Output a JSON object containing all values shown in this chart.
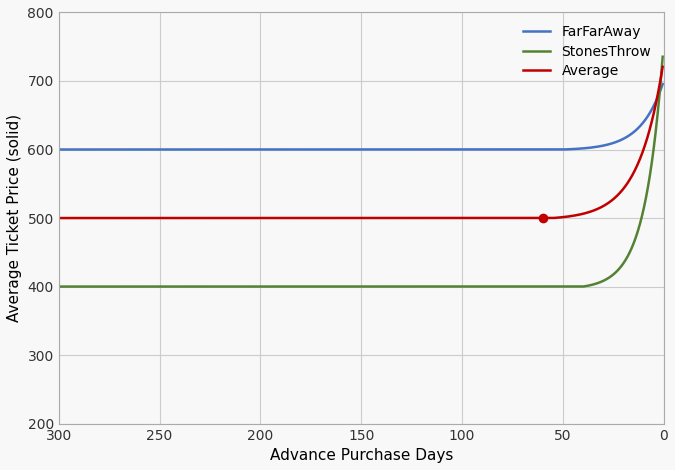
{
  "title": "",
  "xlabel": "Advance Purchase Days",
  "ylabel": "Average Ticket Price (solid)",
  "xlim": [
    300,
    0
  ],
  "ylim": [
    200,
    800
  ],
  "xticks": [
    300,
    250,
    200,
    150,
    100,
    50,
    0
  ],
  "yticks": [
    200,
    300,
    400,
    500,
    600,
    700,
    800
  ],
  "farfaraway_base": 600,
  "stonesThrow_base": 400,
  "average_base": 500,
  "dot_x": 60,
  "dot_y": 500,
  "color_farfaraway": "#4472C4",
  "color_stonesthrow": "#548235",
  "color_average": "#C00000",
  "color_dot": "#C00000",
  "background_color": "#f8f8f8",
  "grid_color": "#cccccc",
  "legend_labels": [
    "FarFarAway",
    "StonesThrow",
    "Average"
  ],
  "figsize": [
    6.75,
    4.7
  ],
  "dpi": 100
}
